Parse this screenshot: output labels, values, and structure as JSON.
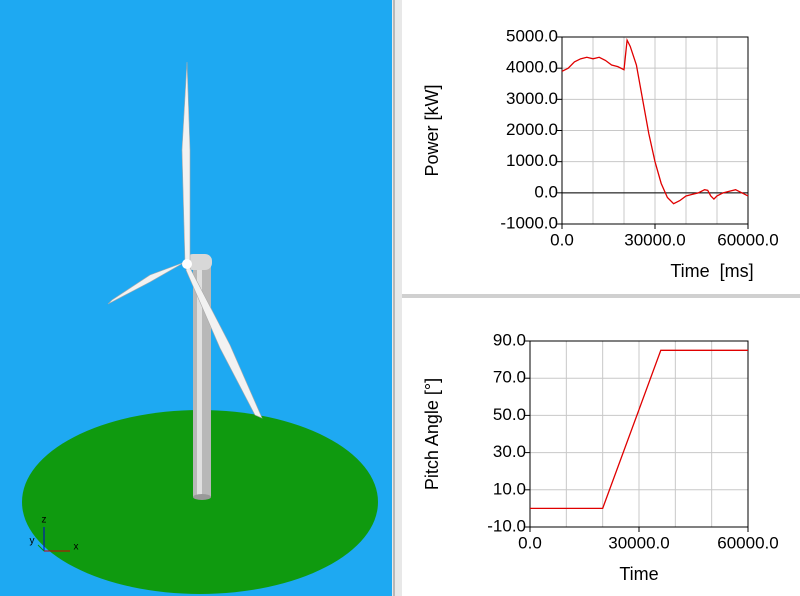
{
  "viewport": {
    "axes": [
      "z",
      "y",
      "x"
    ]
  },
  "chart_data": [
    {
      "type": "line",
      "ylabel": "Power [kW]",
      "xlabel": "Time  [ms]",
      "xlim": [
        0,
        60000
      ],
      "ylim": [
        -1000,
        5000
      ],
      "xticks": [
        {
          "value": 0,
          "label": "0.0"
        },
        {
          "value": 30000,
          "label": "30000.0"
        },
        {
          "value": 60000,
          "label": "60000.0"
        }
      ],
      "yticks": [
        {
          "value": -1000,
          "label": "-1000.0"
        },
        {
          "value": 0,
          "label": "0.0"
        },
        {
          "value": 1000,
          "label": "1000.0"
        },
        {
          "value": 2000,
          "label": "2000.0"
        },
        {
          "value": 3000,
          "label": "3000.0"
        },
        {
          "value": 4000,
          "label": "4000.0"
        },
        {
          "value": 5000,
          "label": "5000.0"
        }
      ],
      "xminor": [
        10000,
        20000,
        40000,
        50000
      ],
      "grid": true,
      "zero_line": true,
      "x": [
        0,
        2000,
        4000,
        6000,
        8000,
        10000,
        12000,
        14000,
        16000,
        18000,
        20000,
        21000,
        22000,
        24000,
        26000,
        28000,
        30000,
        32000,
        34000,
        36000,
        38000,
        40000,
        42000,
        44000,
        46000,
        47000,
        48000,
        49000,
        50000,
        52000,
        54000,
        56000,
        58000,
        60000
      ],
      "series": [
        {
          "name": "Power",
          "color": "#e00000",
          "values": [
            3900,
            4000,
            4200,
            4300,
            4350,
            4300,
            4350,
            4250,
            4100,
            4050,
            3950,
            4900,
            4700,
            4100,
            3000,
            1900,
            1000,
            300,
            -150,
            -350,
            -250,
            -100,
            -50,
            0,
            100,
            80,
            -100,
            -200,
            -100,
            0,
            50,
            100,
            0,
            -100
          ]
        }
      ]
    },
    {
      "type": "line",
      "ylabel": "Pitch Angle [°]",
      "xlabel": "Time",
      "xlim": [
        0,
        60000
      ],
      "ylim": [
        -10,
        90
      ],
      "xticks": [
        {
          "value": 0,
          "label": "0.0"
        },
        {
          "value": 30000,
          "label": "30000.0"
        },
        {
          "value": 60000,
          "label": "60000.0"
        }
      ],
      "yticks": [
        {
          "value": -10,
          "label": "-10.0"
        },
        {
          "value": 10,
          "label": "10.0"
        },
        {
          "value": 30,
          "label": "30.0"
        },
        {
          "value": 50,
          "label": "50.0"
        },
        {
          "value": 70,
          "label": "70.0"
        },
        {
          "value": 90,
          "label": "90.0"
        }
      ],
      "xminor": [
        10000,
        20000,
        40000,
        50000
      ],
      "grid": true,
      "zero_line": false,
      "x": [
        0,
        20000,
        36000,
        60000
      ],
      "series": [
        {
          "name": "Pitch",
          "color": "#e00000",
          "values": [
            0,
            0,
            85,
            85
          ]
        }
      ]
    }
  ]
}
